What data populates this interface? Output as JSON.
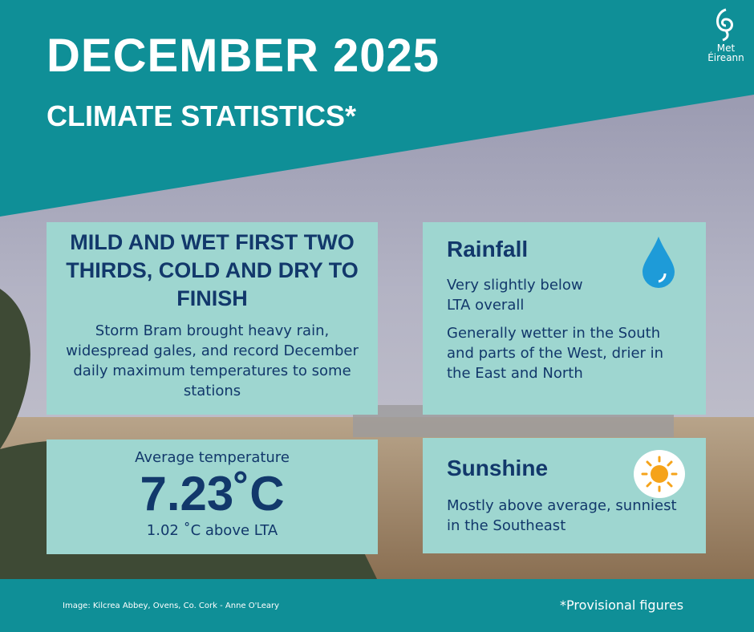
{
  "header": {
    "title": "DECEMBER 2025",
    "subtitle": "CLIMATE STATISTICS*"
  },
  "logo": {
    "line1": "Met",
    "line2": "Éireann"
  },
  "cards": {
    "summary": {
      "title": "MILD AND WET FIRST TWO THIRDS, COLD AND DRY TO FINISH",
      "text": "Storm Bram brought heavy rain, widespread gales, and record December daily maximum temperatures to some stations"
    },
    "rainfall": {
      "title": "Rainfall",
      "lines": [
        "Very slightly below LTA overall",
        "Generally wetter in the South and parts of the West, drier in the East and North"
      ]
    },
    "temperature": {
      "label": "Average temperature",
      "value": "7.23˚C",
      "anomaly": "1.02 ˚C above LTA"
    },
    "sunshine": {
      "title": "Sunshine",
      "text": "Mostly above average, sunniest in the Southeast"
    }
  },
  "footer": {
    "credit": "Image: Kilcrea Abbey, Ovens, Co. Cork - Anne O'Leary",
    "note": "*Provisional figures"
  }
}
